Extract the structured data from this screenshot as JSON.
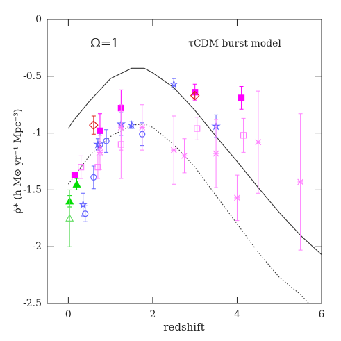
{
  "chart_data": {
    "type": "scatter",
    "xlabel": "redshift",
    "ylabel": "ρ̇* (h M⊙ yr⁻¹ Mpc⁻³)",
    "annotations": [
      "Ω=1",
      "τCDM burst model"
    ],
    "xlim": [
      -0.5,
      6
    ],
    "ylim": [
      -2.5,
      0
    ],
    "xticks": [
      0,
      2,
      4,
      6
    ],
    "yticks": [
      0,
      -0.5,
      -1,
      -1.5,
      -2,
      -2.5
    ],
    "series": [
      {
        "kind": "line",
        "style": "solid",
        "color": "#333333",
        "x": [
          0,
          0.1,
          0.5,
          1,
          1.5,
          1.8,
          2,
          2.5,
          3,
          3.5,
          4,
          4.5,
          5,
          5.5,
          6
        ],
        "values": [
          -0.96,
          -0.9,
          -0.72,
          -0.52,
          -0.43,
          -0.43,
          -0.47,
          -0.6,
          -0.8,
          -1.03,
          -1.25,
          -1.48,
          -1.7,
          -1.9,
          -2.07
        ]
      },
      {
        "kind": "line",
        "style": "dotted",
        "color": "#333333",
        "x": [
          0,
          0.5,
          1,
          1.5,
          1.8,
          2,
          2.5,
          3,
          3.5,
          4,
          4.5,
          5,
          5.5,
          5.7
        ],
        "values": [
          -1.45,
          -1.2,
          -1.03,
          -0.93,
          -0.92,
          -0.95,
          -1.1,
          -1.3,
          -1.55,
          -1.8,
          -2.05,
          -2.27,
          -2.42,
          -2.5
        ]
      },
      {
        "kind": "points",
        "marker": "square",
        "filled": true,
        "color": "#ff00ff",
        "x": [
          0.15,
          0.75,
          1.25,
          3.0,
          4.1
        ],
        "values": [
          -1.37,
          -0.98,
          -0.78,
          -0.64,
          -0.69
        ],
        "err": [
          0.02,
          0.15,
          0.16,
          0.07,
          0.1
        ]
      },
      {
        "kind": "points",
        "marker": "triangle",
        "filled": true,
        "color": "#00dd00",
        "x": [
          0.03,
          0.2
        ],
        "values": [
          -1.6,
          -1.45
        ],
        "err": [
          0.05,
          0.05
        ]
      },
      {
        "kind": "points",
        "marker": "triangle",
        "filled": false,
        "color": "#66dd66",
        "x": [
          0.03
        ],
        "values": [
          -1.75
        ],
        "err": [
          0.25
        ]
      },
      {
        "kind": "points",
        "marker": "diamond",
        "filled": false,
        "color": "#dd2020",
        "x": [
          0.6,
          3.0
        ],
        "values": [
          -0.93,
          -0.67
        ],
        "err": [
          0.08,
          0.03
        ]
      },
      {
        "kind": "points",
        "marker": "circle",
        "filled": false,
        "color": "#6060ff",
        "x": [
          0.4,
          0.6,
          0.75,
          0.9,
          1.75
        ],
        "values": [
          -1.71,
          -1.39,
          -1.1,
          -1.07,
          -1.01
        ],
        "err": [
          0.07,
          0.1,
          0.1,
          0.1,
          0.1
        ]
      },
      {
        "kind": "points",
        "marker": "star",
        "filled": false,
        "color": "#6060ff",
        "x": [
          0.35,
          0.7,
          1.25,
          1.5,
          2.5,
          3.5
        ],
        "values": [
          -1.63,
          -1.1,
          -0.92,
          -0.93,
          -0.57,
          -0.94
        ],
        "err": [
          0.1,
          0.05,
          0.1,
          0.03,
          0.05,
          0.1
        ]
      },
      {
        "kind": "points",
        "marker": "square",
        "filled": false,
        "color": "#ff80ff",
        "x": [
          0.3,
          0.7,
          1.25,
          3.05,
          4.15
        ],
        "values": [
          -1.3,
          -1.3,
          -1.1,
          -0.96,
          -1.02
        ],
        "err": [
          0.1,
          0.1,
          0.3,
          0.1,
          0.15
        ]
      },
      {
        "kind": "points",
        "marker": "cross",
        "filled": false,
        "color": "#ff80ff",
        "x": [
          0.75,
          1.25,
          1.75,
          2.5,
          2.75,
          3.5,
          4,
          4.5,
          5.5
        ],
        "values": [
          -1.17,
          -0.95,
          -0.95,
          -1.15,
          -1.2,
          -1.18,
          -1.57,
          -1.08,
          -1.43
        ],
        "err": [
          0.15,
          0.2,
          0.2,
          0.3,
          0.15,
          0.3,
          0.2,
          0.45,
          0.6
        ]
      }
    ]
  }
}
